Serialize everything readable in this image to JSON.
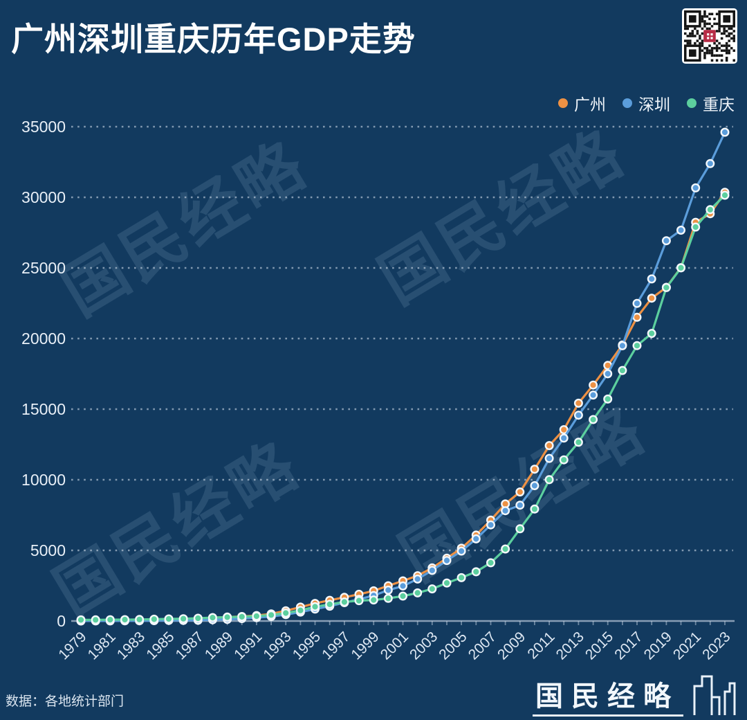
{
  "page": {
    "background": "#123a5f"
  },
  "header": {
    "title": "广州深圳重庆历年GDP走势"
  },
  "qr": {
    "label": "qr-code",
    "center_seal_color": "#b72c46"
  },
  "watermark": {
    "text": "国民经略"
  },
  "footer": {
    "source": "数据：各地统计部门",
    "brand": "国民经略"
  },
  "chart_data": {
    "type": "line",
    "title": "广州深圳重庆历年GDP走势",
    "legend_position": "top-right",
    "grid": "horizontal-dashed",
    "ylim": [
      0,
      35000
    ],
    "y_ticks": [
      0,
      5000,
      10000,
      15000,
      20000,
      25000,
      30000,
      35000
    ],
    "x": [
      1979,
      1980,
      1981,
      1982,
      1983,
      1984,
      1985,
      1986,
      1987,
      1988,
      1989,
      1990,
      1991,
      1992,
      1993,
      1994,
      1995,
      1996,
      1997,
      1998,
      1999,
      2000,
      2001,
      2002,
      2003,
      2004,
      2005,
      2006,
      2007,
      2008,
      2009,
      2010,
      2011,
      2012,
      2013,
      2014,
      2015,
      2016,
      2017,
      2018,
      2019,
      2020,
      2021,
      2022,
      2023
    ],
    "x_tick_labels": [
      1979,
      1981,
      1983,
      1985,
      1987,
      1989,
      1991,
      1993,
      1995,
      1997,
      1999,
      2001,
      2003,
      2005,
      2007,
      2009,
      2011,
      2013,
      2015,
      2017,
      2019,
      2021,
      2023
    ],
    "series": [
      {
        "name": "广州",
        "color": "#ed9144",
        "values": [
          48.0,
          57.6,
          66.0,
          74.2,
          83.1,
          103.9,
          124.8,
          147.4,
          183.1,
          240.3,
          278.8,
          319.6,
          386.2,
          505.8,
          727.1,
          984.8,
          1243.5,
          1468.1,
          1678.1,
          1893.4,
          2139.2,
          2492.7,
          2841.7,
          3203.9,
          3758.6,
          4450.6,
          5154.2,
          6081.9,
          7140.3,
          8287.4,
          9138.2,
          10748.3,
          12423.4,
          13551.2,
          15420.1,
          16706.9,
          18100.4,
          19547.4,
          21503.2,
          22859.4,
          23628.6,
          25019.1,
          28232.0,
          28839.0,
          30355.7
        ]
      },
      {
        "name": "深圳",
        "color": "#5b9ddb",
        "values": [
          2.0,
          2.7,
          5.0,
          8.3,
          13.1,
          23.4,
          39.0,
          41.7,
          55.9,
          87.0,
          115.7,
          171.7,
          236.7,
          317.3,
          453.1,
          634.7,
          842.8,
          1048.6,
          1297.4,
          1534.9,
          1804.0,
          2187.5,
          2482.5,
          2969.5,
          3585.7,
          4282.1,
          4950.9,
          5813.6,
          6801.6,
          7806.5,
          8201.2,
          9581.5,
          11515.7,
          12950.1,
          14572.0,
          16001.9,
          17502.9,
          19492.6,
          22490.1,
          24221.8,
          26927.1,
          27670.2,
          30664.9,
          32387.7,
          34606.4
        ]
      },
      {
        "name": "重庆",
        "color": "#5ccf9e",
        "values": [
          76.0,
          84.0,
          91.5,
          99.2,
          108.4,
          125.1,
          147.9,
          163.2,
          195.1,
          240.5,
          270.9,
          298.9,
          343.4,
          428.2,
          565.1,
          751.2,
          1010.0,
          1179.1,
          1350.1,
          1440.6,
          1491.0,
          1603.2,
          1765.7,
          1990.1,
          2272.8,
          2692.8,
          3070.5,
          3486.2,
          4122.5,
          5096.7,
          6530.0,
          7925.6,
          10011.4,
          11409.6,
          12656.7,
          14262.6,
          15717.3,
          17740.6,
          19500.3,
          20363.2,
          23605.8,
          25002.8,
          27894.0,
          29129.0,
          30145.8
        ]
      }
    ]
  }
}
